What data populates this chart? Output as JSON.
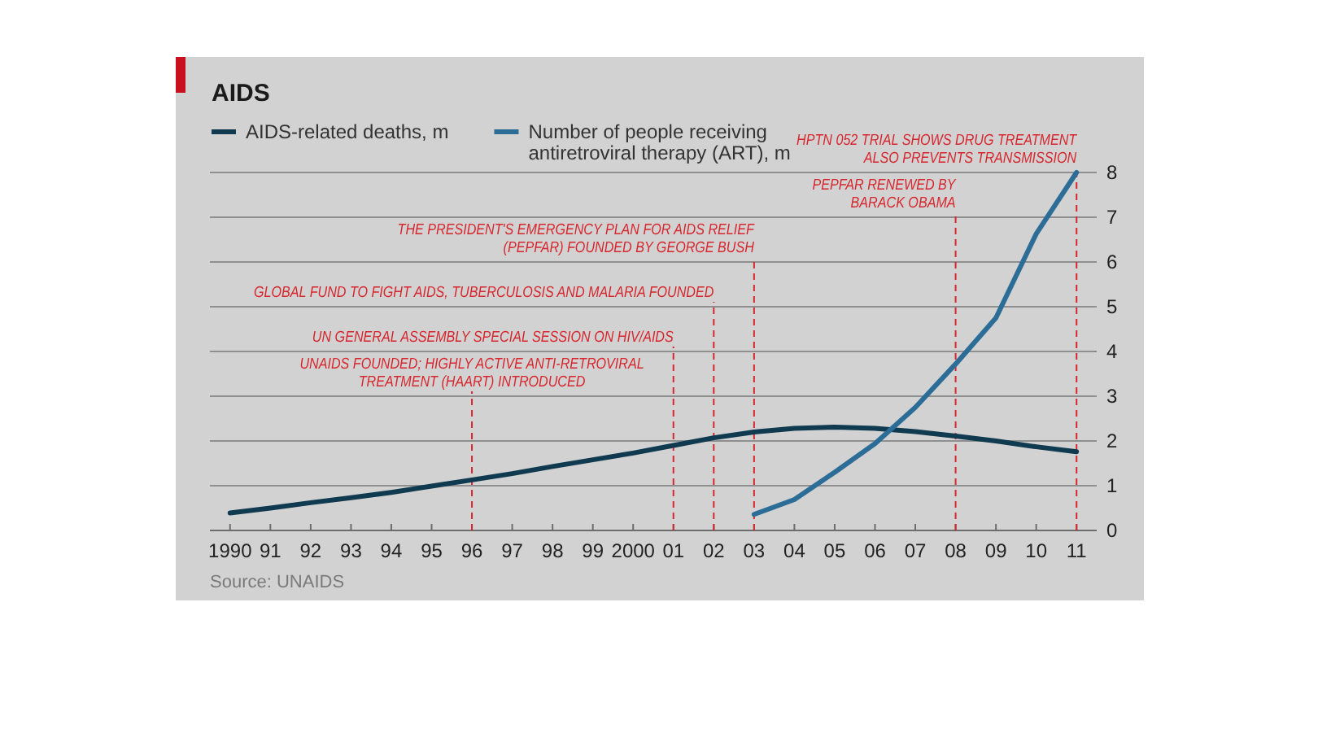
{
  "chart_data": {
    "type": "line",
    "title": "AIDS",
    "x": [
      1990,
      1991,
      1992,
      1993,
      1994,
      1995,
      1996,
      1997,
      1998,
      1999,
      2000,
      2001,
      2002,
      2003,
      2004,
      2005,
      2006,
      2007,
      2008,
      2009,
      2010,
      2011
    ],
    "series": [
      {
        "name": "AIDS-related deaths, m",
        "color": "#0f3a50",
        "values": [
          0.39,
          0.5,
          0.62,
          0.73,
          0.85,
          0.99,
          1.13,
          1.27,
          1.43,
          1.58,
          1.73,
          1.9,
          2.07,
          2.2,
          2.28,
          2.31,
          2.28,
          2.21,
          2.11,
          2.0,
          1.87,
          1.76
        ]
      },
      {
        "name": "Number of people receiving antiretroviral therapy (ART), m",
        "color": "#2c6d98",
        "x": [
          2003,
          2004,
          2005,
          2006,
          2007,
          2008,
          2009,
          2010,
          2011
        ],
        "values": [
          0.36,
          0.69,
          1.3,
          1.94,
          2.75,
          3.72,
          4.75,
          6.63,
          8.0
        ]
      }
    ],
    "xlim": [
      1989.5,
      2011.5
    ],
    "xticks": [
      {
        "value": 1990,
        "label": "1990"
      },
      {
        "value": 1991,
        "label": "91"
      },
      {
        "value": 1992,
        "label": "92"
      },
      {
        "value": 1993,
        "label": "93"
      },
      {
        "value": 1994,
        "label": "94"
      },
      {
        "value": 1995,
        "label": "95"
      },
      {
        "value": 1996,
        "label": "96"
      },
      {
        "value": 1997,
        "label": "97"
      },
      {
        "value": 1998,
        "label": "98"
      },
      {
        "value": 1999,
        "label": "99"
      },
      {
        "value": 2000,
        "label": "2000"
      },
      {
        "value": 2001,
        "label": "01"
      },
      {
        "value": 2002,
        "label": "02"
      },
      {
        "value": 2003,
        "label": "03"
      },
      {
        "value": 2004,
        "label": "04"
      },
      {
        "value": 2005,
        "label": "05"
      },
      {
        "value": 2006,
        "label": "06"
      },
      {
        "value": 2007,
        "label": "07"
      },
      {
        "value": 2008,
        "label": "08"
      },
      {
        "value": 2009,
        "label": "09"
      },
      {
        "value": 2010,
        "label": "10"
      },
      {
        "value": 2011,
        "label": "11"
      }
    ],
    "ylim": [
      0,
      8
    ],
    "yticks": [
      0,
      1,
      2,
      3,
      4,
      5,
      6,
      7,
      8
    ],
    "grid": "y",
    "legend": "top left",
    "line_style": "solid",
    "ref_lines": [
      {
        "axis": "x",
        "value": 1996,
        "label": "UNAIDS FOUNDED; HIGHLY ACTIVE ANTI-RETROVIRAL\nTREATMENT (HAART) INTRODUCED",
        "color": "#d7262d",
        "line_style": "dashed"
      },
      {
        "axis": "x",
        "value": 2001,
        "label": "UN GENERAL ASSEMBLY SPECIAL SESSION ON HIV/AIDS",
        "color": "#d7262d",
        "line_style": "dashed"
      },
      {
        "axis": "x",
        "value": 2002,
        "label": "GLOBAL FUND TO FIGHT AIDS, TUBERCULOSIS AND MALARIA FOUNDED",
        "color": "#d7262d",
        "line_style": "dashed"
      },
      {
        "axis": "x",
        "value": 2003,
        "label": "THE PRESIDENT'S EMERGENCY PLAN FOR AIDS RELIEF\n(PEPFAR) FOUNDED BY GEORGE BUSH",
        "color": "#d7262d",
        "line_style": "dashed"
      },
      {
        "axis": "x",
        "value": 2008,
        "label": "PEPFAR RENEWED BY\nBARACK OBAMA",
        "color": "#d7262d",
        "line_style": "dashed"
      },
      {
        "axis": "x",
        "value": 2011,
        "label": "HPTN 052 TRIAL SHOWS DRUG TREATMENT\nALSO PREVENTS TRANSMISSION",
        "color": "#d7262d",
        "line_style": "dashed"
      }
    ],
    "annotations": [
      "Source: UNAIDS"
    ]
  }
}
